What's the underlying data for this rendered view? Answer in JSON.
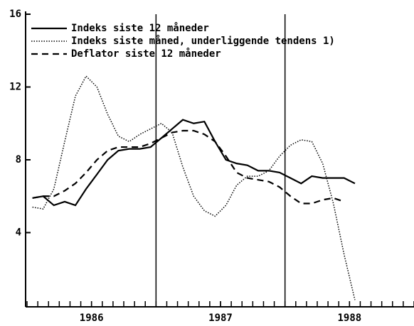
{
  "chart_data": {
    "type": "line",
    "x": [
      1986.042,
      1986.125,
      1986.208,
      1986.292,
      1986.375,
      1986.458,
      1986.542,
      1986.625,
      1986.708,
      1986.792,
      1986.875,
      1986.958,
      1987.042,
      1987.125,
      1987.208,
      1987.292,
      1987.375,
      1987.458,
      1987.542,
      1987.625,
      1987.708,
      1987.792,
      1987.875,
      1987.958,
      1988.042,
      1988.125,
      1988.208,
      1988.292,
      1988.375,
      1988.458,
      1988.542
    ],
    "series": [
      {
        "name": "Indeks siste 12 måneder",
        "color": "#000000",
        "dash": "solid",
        "values": [
          5.9,
          6.0,
          5.5,
          5.7,
          5.5,
          6.4,
          7.2,
          8.0,
          8.5,
          8.6,
          8.6,
          8.7,
          9.2,
          9.7,
          10.2,
          10.0,
          10.1,
          9.0,
          8.0,
          7.8,
          7.7,
          7.4,
          7.4,
          7.3,
          7.0,
          6.7,
          7.1,
          7.0,
          7.0,
          7.0,
          6.7
        ]
      },
      {
        "name": "Indeks siste måned, underliggende tendens 1)",
        "color": "#000000",
        "dash": "dotted",
        "values": [
          5.4,
          5.3,
          6.4,
          9.0,
          11.5,
          12.6,
          12.0,
          10.5,
          9.3,
          9.0,
          9.4,
          9.7,
          10.0,
          9.5,
          7.6,
          6.0,
          5.2,
          4.9,
          5.5,
          6.6,
          7.1,
          7.1,
          7.4,
          8.2,
          8.8,
          9.1,
          9.0,
          7.8,
          5.6,
          2.8,
          0.3
        ]
      },
      {
        "name": "Deflator siste 12 måneder",
        "color": "#000000",
        "dash": "dashed",
        "values": [
          5.9,
          6.0,
          6.0,
          6.3,
          6.7,
          7.3,
          8.0,
          8.5,
          8.7,
          8.7,
          8.7,
          8.9,
          9.2,
          9.5,
          9.6,
          9.6,
          9.4,
          9.0,
          8.2,
          7.3,
          7.0,
          6.9,
          6.8,
          6.5,
          6.0,
          5.6,
          5.6,
          5.8,
          5.9,
          5.7,
          null
        ]
      }
    ],
    "xlim": [
      1986,
      1989
    ],
    "xticks": [
      {
        "value": 1986.5,
        "label": "1986"
      },
      {
        "value": 1987.5,
        "label": "1987"
      },
      {
        "value": 1988.5,
        "label": "1988"
      }
    ],
    "vlines": [
      1987,
      1988
    ],
    "ylim": [
      0,
      16
    ],
    "yticks": [
      4,
      8,
      12,
      16
    ],
    "legend": "upper left"
  }
}
